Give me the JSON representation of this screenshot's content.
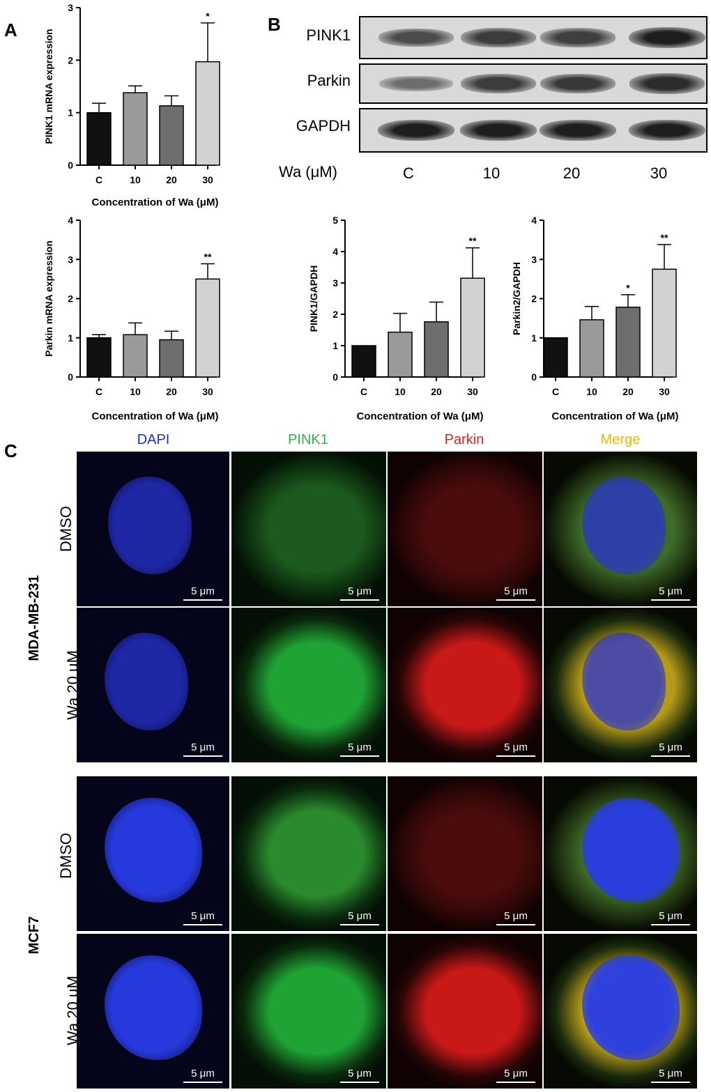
{
  "panels": {
    "a": "A",
    "b": "B",
    "c": "C"
  },
  "chart_data": [
    {
      "id": "pink1-mrna",
      "type": "bar",
      "categories": [
        "C",
        "10",
        "20",
        "30"
      ],
      "values": [
        1.0,
        1.38,
        1.13,
        1.97
      ],
      "errors": [
        0.18,
        0.13,
        0.19,
        0.74
      ],
      "significance": [
        "",
        "",
        "",
        "*"
      ],
      "ylim": [
        0,
        3
      ],
      "yticks": [
        0,
        1,
        2,
        3
      ],
      "ylabel": "PINK1 mRNA expression",
      "xlabel": "Concentration of Wa (μM)",
      "colors": [
        "#111111",
        "#9a9a9a",
        "#6e6e6e",
        "#d2d2d2"
      ]
    },
    {
      "id": "parkin-mrna",
      "type": "bar",
      "categories": [
        "C",
        "10",
        "20",
        "30"
      ],
      "values": [
        1.0,
        1.08,
        0.95,
        2.5
      ],
      "errors": [
        0.08,
        0.3,
        0.22,
        0.39
      ],
      "significance": [
        "",
        "",
        "",
        "**"
      ],
      "ylim": [
        0,
        4
      ],
      "yticks": [
        0,
        1,
        2,
        3,
        4
      ],
      "ylabel": "Parkin mRNA expression",
      "xlabel": "Concentration of Wa (μM)",
      "colors": [
        "#111111",
        "#9a9a9a",
        "#6e6e6e",
        "#d2d2d2"
      ]
    },
    {
      "id": "pink1-gapdh",
      "type": "bar",
      "categories": [
        "C",
        "10",
        "20",
        "30"
      ],
      "values": [
        1.0,
        1.43,
        1.76,
        3.15
      ],
      "errors": [
        0.0,
        0.6,
        0.63,
        0.97
      ],
      "significance": [
        "",
        "",
        "",
        "**"
      ],
      "ylim": [
        0,
        5
      ],
      "yticks": [
        0,
        1,
        2,
        3,
        4,
        5
      ],
      "ylabel": "PINK1/GAPDH",
      "xlabel": "Concentration of Wa (μM)",
      "colors": [
        "#111111",
        "#9a9a9a",
        "#6e6e6e",
        "#d2d2d2"
      ]
    },
    {
      "id": "parkin2-gapdh",
      "type": "bar",
      "categories": [
        "C",
        "10",
        "20",
        "30"
      ],
      "values": [
        1.0,
        1.46,
        1.78,
        2.75
      ],
      "errors": [
        0.0,
        0.34,
        0.32,
        0.63
      ],
      "significance": [
        "",
        "",
        "*",
        "**"
      ],
      "ylim": [
        0,
        4
      ],
      "yticks": [
        0,
        1,
        2,
        3,
        4
      ],
      "ylabel": "Parkin2/GAPDH",
      "xlabel": "Concentration of Wa (μM)",
      "colors": [
        "#111111",
        "#9a9a9a",
        "#6e6e6e",
        "#d2d2d2"
      ]
    }
  ],
  "blot": {
    "rows": [
      "PINK1",
      "Parkin",
      "GAPDH"
    ],
    "lane_axis_label": "Wa (μM)",
    "lanes": [
      "C",
      "10",
      "20",
      "30"
    ],
    "band_intensity": [
      [
        0.72,
        0.8,
        0.78,
        0.95
      ],
      [
        0.55,
        0.8,
        0.82,
        0.88
      ],
      [
        0.95,
        0.95,
        0.95,
        0.95
      ]
    ]
  },
  "microscopy": {
    "channels": [
      {
        "label": "DAPI",
        "color": "#1f2fd6"
      },
      {
        "label": "PINK1",
        "color": "#2fb34a"
      },
      {
        "label": "Parkin",
        "color": "#e02020"
      },
      {
        "label": "Merge",
        "color": "#f0b800"
      }
    ],
    "cell_lines": [
      "MDA-MB-231",
      "MCF7"
    ],
    "conditions": [
      "DMSO",
      "Wa 20 μM"
    ],
    "scale_bar": "5 μm"
  }
}
